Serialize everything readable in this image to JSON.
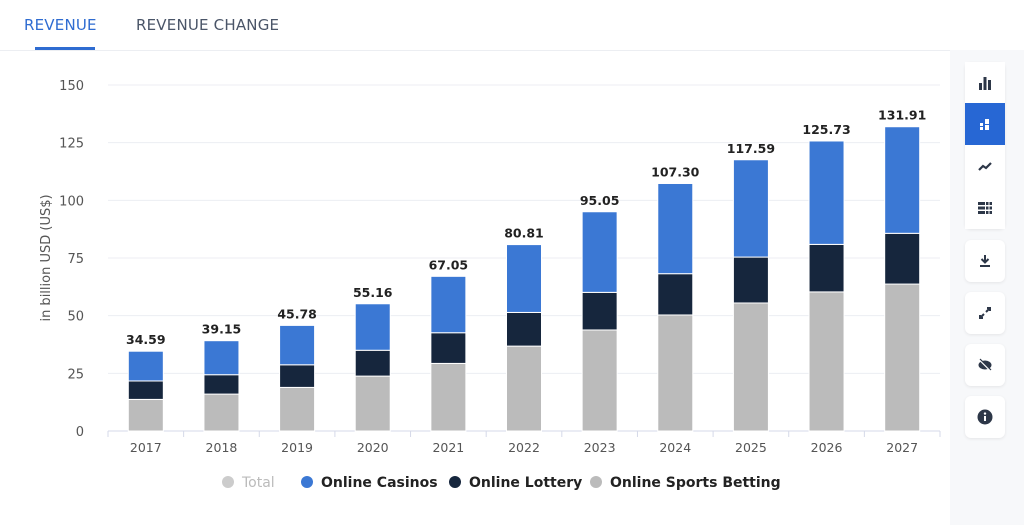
{
  "tabs": [
    {
      "label": "REVENUE",
      "active": true
    },
    {
      "label": "REVENUE CHANGE",
      "active": false
    }
  ],
  "toolbar": {
    "icons": [
      "bar-chart-icon",
      "stacked-bar-icon",
      "line-chart-icon",
      "table-icon",
      "download-icon",
      "fullscreen-icon",
      "hide-icon",
      "info-icon"
    ],
    "active": "stacked-bar-icon"
  },
  "colors": {
    "accent": "#2f6cd1",
    "casinos": "#3b78d4",
    "lottery": "#16263d",
    "sports": "#bbbbbb",
    "total_legend": "#cccccc"
  },
  "chart_data": {
    "type": "bar",
    "stacked": true,
    "ylabel": "in billion USD (US$)",
    "ylim": [
      0,
      150
    ],
    "yticks": [
      0,
      25,
      50,
      75,
      100,
      125,
      150
    ],
    "grid": true,
    "legend_placement": "bottom",
    "categories": [
      "2017",
      "2018",
      "2019",
      "2020",
      "2021",
      "2022",
      "2023",
      "2024",
      "2025",
      "2026",
      "2027"
    ],
    "totals": [
      "34.59",
      "39.15",
      "45.78",
      "55.16",
      "67.05",
      "80.81",
      "95.05",
      "107.30",
      "117.59",
      "125.73",
      "131.91"
    ],
    "legend": [
      {
        "name": "Total",
        "color": "#cccccc",
        "disabled": true
      },
      {
        "name": "Online Casinos",
        "color": "#3b78d4"
      },
      {
        "name": "Online Lottery",
        "color": "#16263d"
      },
      {
        "name": "Online Sports Betting",
        "color": "#bbbbbb"
      }
    ],
    "series": [
      {
        "name": "Online Sports Betting",
        "color": "#bbbbbb",
        "values": [
          13.7,
          16.0,
          18.9,
          23.8,
          29.3,
          36.8,
          43.8,
          50.3,
          55.5,
          60.3,
          63.7
        ]
      },
      {
        "name": "Online Lottery",
        "color": "#16263d",
        "values": [
          8.0,
          8.4,
          9.8,
          11.2,
          13.3,
          14.6,
          16.3,
          17.9,
          19.9,
          20.6,
          22.0
        ]
      },
      {
        "name": "Online Casinos",
        "color": "#3b78d4",
        "values": [
          12.89,
          14.75,
          17.08,
          20.16,
          24.45,
          29.41,
          34.95,
          39.1,
          42.19,
          44.83,
          46.21
        ]
      }
    ]
  }
}
